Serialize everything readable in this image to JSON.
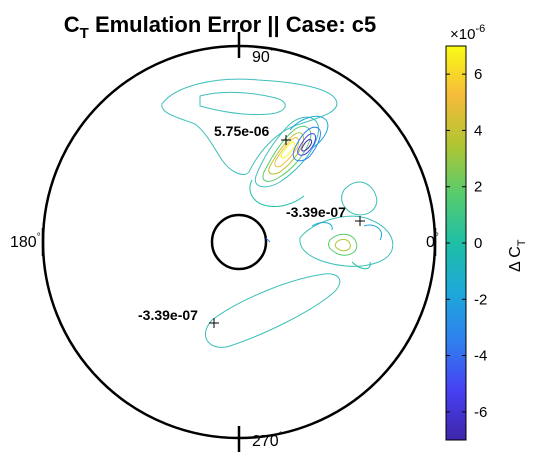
{
  "chart_data": {
    "type": "contour",
    "title": {
      "main": "C",
      "sub": "T",
      "rest": " Emulation Error || Case: c5"
    },
    "polar_labels": {
      "deg_90": "90",
      "deg_180": "180",
      "deg_270": "270",
      "deg_0": "0",
      "degree_mark": "°"
    },
    "annotations": [
      {
        "label": "5.75e-06",
        "type": "max",
        "angle_deg": 67,
        "radius_frac": 0.56
      },
      {
        "label": "-3.39e-07",
        "type": "min",
        "angle_deg": 9,
        "radius_frac": 0.67
      },
      {
        "label": "-3.39e-07",
        "type": "min",
        "angle_deg": 224,
        "radius_frac": 0.49
      }
    ],
    "colorbar": {
      "label_main": "Δ C",
      "label_sub": "T",
      "exponent": "×10",
      "exponent_power": "-6",
      "ticks": [
        6,
        4,
        2,
        0,
        -2,
        -4,
        -6
      ],
      "range": [
        -7,
        7
      ],
      "colormap": "parula",
      "colors": [
        "#3e26a8",
        "#4740f3",
        "#2f80ee",
        "#1ea8d9",
        "#1ebfa6",
        "#58cb6d",
        "#b1c532",
        "#f6bb3a",
        "#f9fb15"
      ]
    },
    "inner_radius_frac": 0.14,
    "line_color": "#3fbfbb"
  }
}
